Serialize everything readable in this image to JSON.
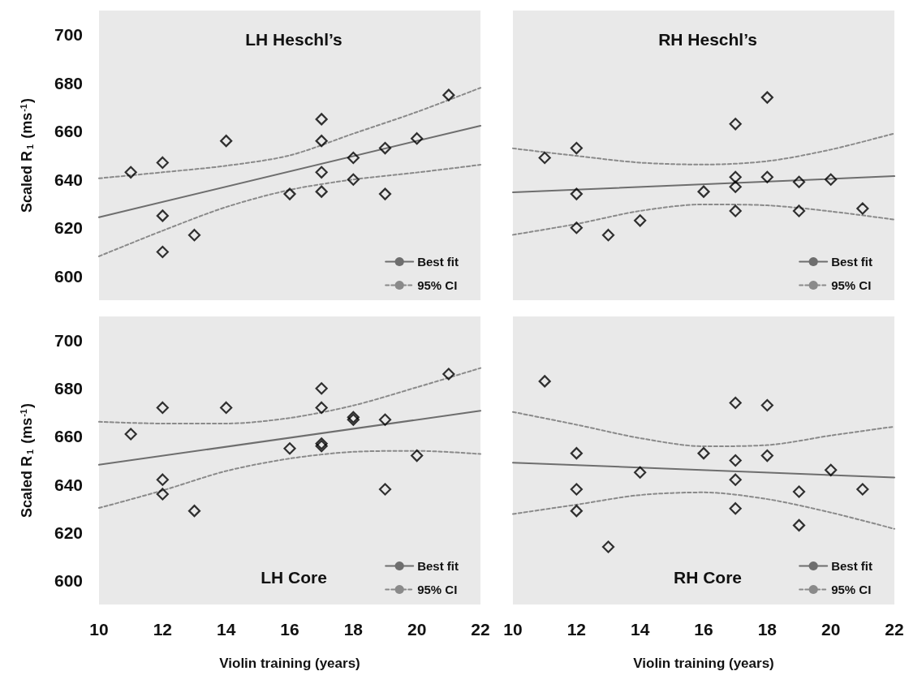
{
  "chart_data": [
    {
      "type": "scatter",
      "title": "LH Heschl’s",
      "ylabel": "Scaled R$_{1}$ (ms$^{-1}$)",
      "xlim": [
        10,
        22
      ],
      "xticks": [
        10,
        12,
        14,
        16,
        18,
        20,
        22
      ],
      "ylim": [
        590,
        710
      ],
      "yticks": [
        600,
        620,
        640,
        660,
        680,
        700
      ],
      "tick_labels": "y",
      "grid": false,
      "legend": "bottom right",
      "series": [
        {
          "color": "#000000",
          "marker": "diamond",
          "x": [
            11,
            12,
            12,
            12,
            13,
            14,
            16,
            17,
            17,
            17,
            17,
            18,
            18,
            19,
            19,
            20,
            21
          ],
          "values": [
            643,
            647,
            625,
            610,
            617,
            656,
            634,
            665,
            656,
            643,
            635,
            649,
            640,
            653,
            634,
            657,
            675
          ]
        },
        {
          "name": "Best fit",
          "type": "line",
          "marker": "none",
          "line_style": "solid",
          "color": "#6e6e6e",
          "x": [
            10,
            22
          ],
          "values": [
            624.4,
            662.3
          ]
        },
        {
          "name": "95% CI",
          "type": "line",
          "marker": "none",
          "line_style": "dashed",
          "color": "#8a8a8a",
          "x": [
            10,
            12,
            14,
            16,
            18,
            20,
            22
          ],
          "values": [
            640.5,
            643,
            645.7,
            650,
            659,
            668,
            678
          ]
        },
        {
          "type": "line",
          "marker": "none",
          "line_style": "dashed",
          "color": "#8a8a8a",
          "x": [
            10,
            12,
            14,
            16,
            18,
            20,
            22
          ],
          "values": [
            608.2,
            618.8,
            628.6,
            635.7,
            640,
            642.9,
            646.1
          ]
        }
      ]
    },
    {
      "type": "scatter",
      "title": "RH Heschl’s",
      "xlim": [
        10,
        22
      ],
      "xticks": [
        10,
        12,
        14,
        16,
        18,
        20,
        22
      ],
      "ylim": [
        590,
        710
      ],
      "yticks": [
        600,
        620,
        640,
        660,
        680,
        700
      ],
      "tick_labels": false,
      "grid": false,
      "legend": "bottom right",
      "series": [
        {
          "color": "#000000",
          "marker": "diamond",
          "x": [
            11,
            12,
            12,
            12,
            13,
            14,
            16,
            17,
            17,
            17,
            17,
            18,
            18,
            19,
            19,
            20,
            21
          ],
          "values": [
            649,
            653,
            634,
            620,
            617,
            623,
            635,
            663,
            641,
            637,
            627,
            674,
            641,
            639,
            627,
            640,
            628
          ]
        },
        {
          "name": "Best fit",
          "type": "line",
          "marker": "none",
          "line_style": "solid",
          "color": "#6e6e6e",
          "x": [
            10,
            22
          ],
          "values": [
            634.7,
            641.4
          ]
        },
        {
          "name": "95% CI",
          "type": "line",
          "marker": "none",
          "line_style": "dashed",
          "color": "#8a8a8a",
          "x": [
            10,
            12,
            14,
            16,
            18,
            20,
            22
          ],
          "values": [
            652.9,
            649.8,
            647,
            646.2,
            647.6,
            652.4,
            659.1
          ]
        },
        {
          "type": "line",
          "marker": "none",
          "line_style": "dashed",
          "color": "#8a8a8a",
          "x": [
            10,
            12,
            14,
            16,
            18,
            20,
            22
          ],
          "values": [
            617.1,
            621.6,
            627,
            629.7,
            629.3,
            626.8,
            623.4
          ]
        }
      ]
    },
    {
      "type": "scatter",
      "title": "LH Core",
      "ylabel": "Scaled R$_{1}$ (ms$^{-1}$)",
      "xlabel": "Violin training (years)",
      "xlim": [
        10,
        22
      ],
      "xticks": [
        10,
        12,
        14,
        16,
        18,
        20,
        22
      ],
      "ylim": [
        590,
        710
      ],
      "yticks": [
        600,
        620,
        640,
        660,
        680,
        700
      ],
      "grid": false,
      "legend": "bottom right",
      "series": [
        {
          "color": "#000000",
          "marker": "diamond",
          "x": [
            11,
            12,
            12,
            12,
            13,
            14,
            16,
            17,
            17,
            17,
            17,
            18,
            18,
            19,
            19,
            20,
            21
          ],
          "values": [
            661,
            672,
            642,
            636,
            629,
            672,
            655,
            680,
            672,
            657,
            656,
            668,
            667,
            667,
            638,
            652,
            686
          ]
        },
        {
          "name": "Best fit",
          "type": "line",
          "marker": "none",
          "line_style": "solid",
          "color": "#6e6e6e",
          "x": [
            10,
            22
          ],
          "values": [
            648.2,
            670.7
          ]
        },
        {
          "name": "95% CI",
          "type": "line",
          "marker": "none",
          "line_style": "dashed",
          "color": "#8a8a8a",
          "x": [
            10,
            12,
            14,
            16,
            18,
            20,
            22
          ],
          "values": [
            666.1,
            665.4,
            665.4,
            667.7,
            672.9,
            680.5,
            688.5
          ]
        },
        {
          "type": "line",
          "marker": "none",
          "line_style": "dashed",
          "color": "#8a8a8a",
          "x": [
            10,
            12,
            14,
            16,
            18,
            20,
            22
          ],
          "values": [
            630.2,
            637.5,
            645.6,
            650.8,
            653.6,
            654,
            652.7
          ]
        }
      ]
    },
    {
      "type": "scatter",
      "title": "RH Core",
      "xlabel": "Violin training (years)",
      "xlim": [
        10,
        22
      ],
      "xticks": [
        10,
        12,
        14,
        16,
        18,
        20,
        22
      ],
      "ylim": [
        590,
        710
      ],
      "yticks": [
        600,
        620,
        640,
        660,
        680,
        700
      ],
      "tick_labels": "x",
      "grid": false,
      "legend": "bottom right",
      "series": [
        {
          "color": "#000000",
          "marker": "diamond",
          "x": [
            11,
            12,
            12,
            12,
            13,
            14,
            16,
            17,
            17,
            17,
            17,
            18,
            18,
            19,
            19,
            20,
            21
          ],
          "values": [
            683,
            653,
            638,
            629,
            614,
            645,
            653,
            674,
            650,
            642,
            630,
            673,
            652,
            637,
            623,
            646,
            638
          ]
        },
        {
          "name": "Best fit",
          "type": "line",
          "marker": "none",
          "line_style": "solid",
          "color": "#6e6e6e",
          "x": [
            10,
            22
          ],
          "values": [
            649.1,
            642.9
          ]
        },
        {
          "name": "95% CI",
          "type": "line",
          "marker": "none",
          "line_style": "dashed",
          "color": "#8a8a8a",
          "x": [
            10,
            12,
            14,
            16,
            18,
            20,
            22
          ],
          "values": [
            670.2,
            664.9,
            659.3,
            655.9,
            656.4,
            660.4,
            664.1
          ]
        },
        {
          "type": "line",
          "marker": "none",
          "line_style": "dashed",
          "color": "#8a8a8a",
          "x": [
            10,
            12,
            14,
            16,
            18,
            20,
            22
          ],
          "values": [
            627.7,
            631.6,
            635.6,
            636.7,
            633.9,
            628.3,
            621.5
          ]
        }
      ]
    }
  ]
}
